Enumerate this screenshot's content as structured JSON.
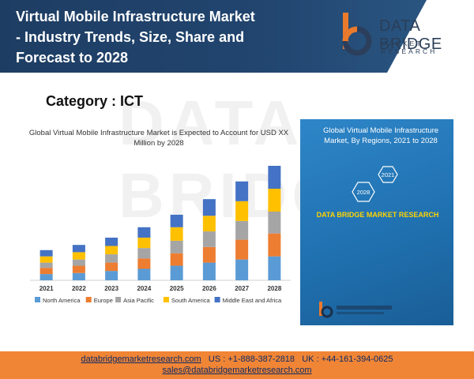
{
  "header": {
    "title_lines": [
      "Virtual Mobile Infrastructure Market",
      "- Industry Trends, Size, Share and",
      "Forecast to 2028"
    ]
  },
  "logo": {
    "name": "DATA BRIDGE",
    "sub": "MARKET RESEARCH"
  },
  "category": "Category : ICT",
  "chart_data": {
    "type": "bar",
    "title": "Global Virtual Mobile Infrastructure Market is Expected to Account for USD XX Million by 2028",
    "categories": [
      "2021",
      "2022",
      "2023",
      "2024",
      "2025",
      "2026",
      "2027",
      "2028"
    ],
    "stacked": true,
    "series": [
      {
        "name": "North America",
        "color": "#5b9bd5",
        "values": [
          6,
          7,
          9,
          11,
          14,
          17,
          20,
          23
        ]
      },
      {
        "name": "Europe",
        "color": "#ed7d31",
        "values": [
          6,
          7,
          8,
          10,
          12,
          15,
          19,
          22
        ]
      },
      {
        "name": "Asia Pacific",
        "color": "#a5a5a5",
        "values": [
          5,
          6,
          8,
          10,
          12,
          15,
          18,
          21
        ]
      },
      {
        "name": "South America",
        "color": "#ffc000",
        "values": [
          6,
          7,
          8,
          10,
          13,
          15,
          19,
          22
        ]
      },
      {
        "name": "Middle East and Africa",
        "color": "#4472c4",
        "values": [
          6,
          7,
          8,
          10,
          12,
          16,
          19,
          22
        ]
      }
    ],
    "legend_position": "bottom",
    "grid": false
  },
  "panel": {
    "title": "Global Virtual Mobile Infrastructure Market, By Regions, 2021 to 2028",
    "hex_labels": [
      "2021",
      "2028"
    ],
    "brand": "DATA BRIDGE MARKET RESEARCH"
  },
  "footer": {
    "website": "databridgemarketresearch.com",
    "us_phone": "US : +1-888-387-2818",
    "uk_phone": "UK : +44-161-394-0625",
    "email": "sales@databridgemarketresearch.com"
  }
}
